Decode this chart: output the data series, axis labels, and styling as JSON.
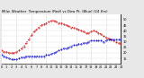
{
  "title": "Milw. Weather  Temperature (Red) vs Dew Pt. (Blue) (24 Hrs)",
  "title_fontsize": 2.8,
  "background_color": "#e8e8e8",
  "plot_bg_color": "#ffffff",
  "xlim": [
    0,
    24
  ],
  "ylim": [
    10,
    55
  ],
  "yticks": [
    15,
    20,
    25,
    30,
    35,
    40,
    45,
    50
  ],
  "ytick_labels": [
    "15",
    "20",
    "25",
    "30",
    "35",
    "40",
    "45",
    "50"
  ],
  "ytick_fontsize": 2.5,
  "xtick_step": 1,
  "xtick_fontsize": 2.4,
  "vgrid_positions": [
    3,
    6,
    9,
    12,
    15,
    18,
    21,
    24
  ],
  "grid_color": "#aaaaaa",
  "temp_color": "#cc0000",
  "dew_color": "#0000cc",
  "temp_x": [
    0,
    0.5,
    1,
    1.5,
    2,
    2.5,
    3,
    3.5,
    4,
    4.5,
    5,
    5.5,
    6,
    6.5,
    7,
    7.5,
    8,
    8.5,
    9,
    9.5,
    10,
    10.5,
    11,
    11.5,
    12,
    12.5,
    13,
    13.5,
    14,
    14.5,
    15,
    15.5,
    16,
    16.5,
    17,
    17.5,
    18,
    18.5,
    19,
    19.5,
    20,
    20.5,
    21,
    21.5,
    22,
    22.5,
    23,
    23.5,
    24
  ],
  "temp_y": [
    22,
    21,
    21,
    20,
    20,
    20,
    21,
    22,
    24,
    26,
    29,
    32,
    36,
    39,
    41,
    43,
    45,
    46,
    47,
    48,
    49,
    49,
    48,
    47,
    47,
    46,
    45,
    44,
    43,
    43,
    42,
    41,
    40,
    39,
    38,
    38,
    39,
    40,
    39,
    38,
    37,
    35,
    34,
    33,
    32,
    31,
    30,
    29,
    28
  ],
  "dew_x": [
    0,
    0.5,
    1,
    1.5,
    2,
    2.5,
    3,
    3.5,
    4,
    4.5,
    5,
    5.5,
    6,
    6.5,
    7,
    7.5,
    8,
    8.5,
    9,
    9.5,
    10,
    10.5,
    11,
    11.5,
    12,
    12.5,
    13,
    13.5,
    14,
    14.5,
    15,
    15.5,
    16,
    16.5,
    17,
    17.5,
    18,
    18.5,
    19,
    19.5,
    20,
    20.5,
    21,
    21.5,
    22,
    22.5,
    23,
    23.5,
    24
  ],
  "dew_y": [
    18,
    17,
    16,
    15,
    14,
    14,
    14,
    15,
    16,
    16,
    17,
    17,
    17,
    17,
    17,
    17,
    17,
    17,
    18,
    18,
    19,
    20,
    21,
    22,
    23,
    24,
    24,
    25,
    26,
    27,
    27,
    28,
    28,
    29,
    29,
    30,
    31,
    31,
    31,
    31,
    31,
    30,
    31,
    32,
    32,
    32,
    32,
    32,
    32
  ]
}
